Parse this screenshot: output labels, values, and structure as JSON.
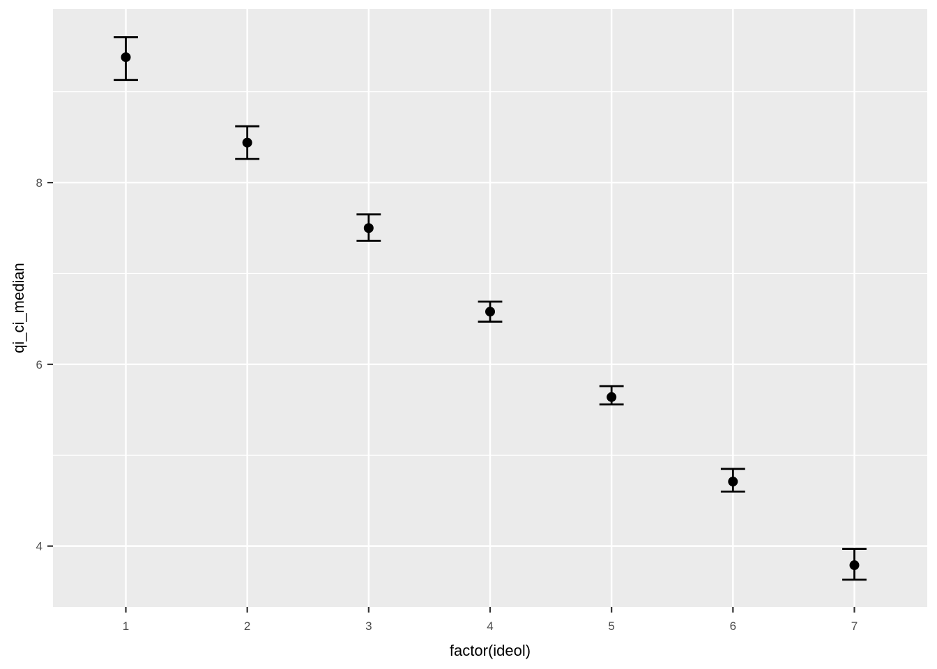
{
  "figure": {
    "background_color": "#FFFFFF",
    "panel_color": "#EBEBEB",
    "grid_color": "#FFFFFF",
    "point_color": "#000000",
    "errorbar_color": "#000000",
    "tick_label_color": "#4D4D4D",
    "tick_mark_color": "#333333",
    "axis_title_color": "#000000"
  },
  "chart_data": {
    "type": "scatter",
    "subtype": "point-with-error-bars",
    "title": "",
    "xlabel": "factor(ideol)",
    "ylabel": "qi_ci_median",
    "categories": [
      "1",
      "2",
      "3",
      "4",
      "5",
      "6",
      "7"
    ],
    "series": [
      {
        "name": "qi_ci_median",
        "median": [
          9.38,
          8.44,
          7.5,
          6.58,
          5.64,
          4.71,
          3.79
        ],
        "lower": [
          9.13,
          8.26,
          7.36,
          6.47,
          5.56,
          4.6,
          3.63
        ],
        "upper": [
          9.6,
          8.62,
          7.65,
          6.69,
          5.76,
          4.85,
          3.97
        ]
      }
    ],
    "y_tick_labels": [
      "4",
      "6",
      "8"
    ],
    "y_major_gridlines": [
      4,
      6,
      8
    ],
    "y_minor_gridlines": [
      5,
      7,
      9
    ],
    "ylim": [
      3.33,
      9.91
    ],
    "x_expansion_units": 0.6,
    "errorbar_cap_width": 0.2,
    "grid": true,
    "legend": false
  }
}
